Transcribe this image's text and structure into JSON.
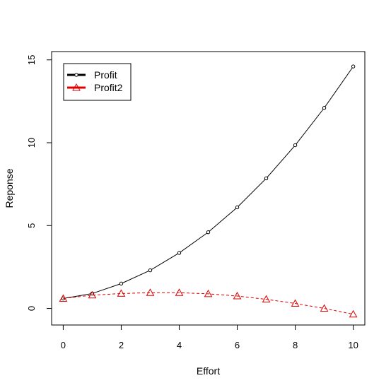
{
  "chart_data": {
    "type": "line",
    "title": "",
    "xlabel": "Effort",
    "ylabel": "Reponse",
    "xlim": [
      -0.4,
      10.4
    ],
    "ylim": [
      -1.0,
      15.5
    ],
    "x_ticks": [
      0,
      2,
      4,
      6,
      8,
      10
    ],
    "x_tick_labels": [
      "0",
      "2",
      "4",
      "6",
      "8",
      "10"
    ],
    "y_ticks": [
      0,
      5,
      10,
      15
    ],
    "y_tick_labels": [
      "0",
      "5",
      "10",
      "15"
    ],
    "grid": false,
    "legend_position": "top-left",
    "x": [
      0,
      1,
      2,
      3,
      4,
      5,
      6,
      7,
      8,
      9,
      10
    ],
    "series": [
      {
        "name": "Profit",
        "color": "#000000",
        "line_style": "solid",
        "marker": "circle",
        "values": [
          0.6,
          0.9,
          1.5,
          2.3,
          3.35,
          4.6,
          6.1,
          7.85,
          9.85,
          12.1,
          14.6
        ]
      },
      {
        "name": "Profit2",
        "color": "#dd0000",
        "line_style": "dashed",
        "marker": "triangle",
        "values": [
          0.6,
          0.8,
          0.9,
          0.95,
          0.95,
          0.88,
          0.75,
          0.55,
          0.3,
          0.0,
          -0.35
        ]
      }
    ]
  }
}
